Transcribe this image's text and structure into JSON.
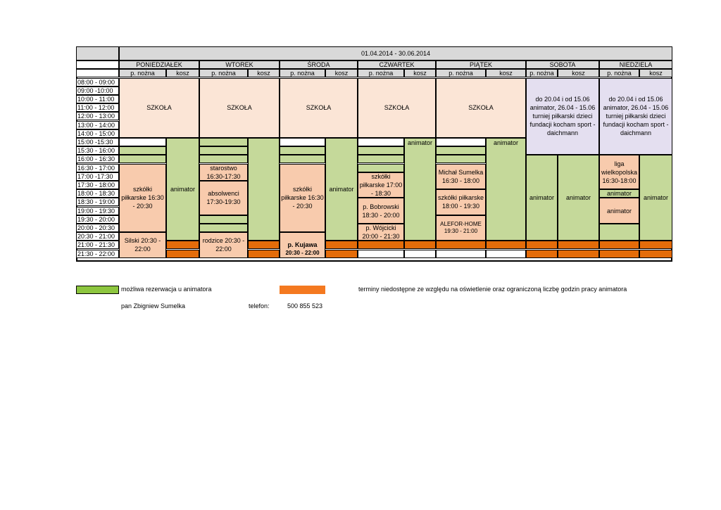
{
  "header": {
    "date_range": "01.04.2014 - 30.06.2014",
    "days": [
      "PONIEDZIAŁEK",
      "WTOREK",
      "ŚRODA",
      "CZWARTEK",
      "PIĄTEK",
      "SOBOTA",
      "NIEDZIELA"
    ],
    "sub_nozna": "p. nożna",
    "sub_kosz": "kosz"
  },
  "times": [
    "08:00 - 09:00",
    "09:00 -10:00",
    "10:00 - 11:00",
    "11:00 - 12:00",
    "12:00 - 13:00",
    "13:00 - 14:00",
    "14:00 - 15:00",
    "15:00 -15:30",
    "15:30 - 16:00",
    "16:00 - 16:30",
    "16:30 - 17:00",
    "17:00 -17:30",
    "17:30 - 18:00",
    "18:00 - 18:30",
    "18:30 - 19:00",
    "19:00 - 19:30",
    "19:30 - 20:00",
    "20:00 - 20:30",
    "20:30 - 21:00",
    "21:00 - 21:30",
    "21:30 - 22:00"
  ],
  "cells": {
    "school": "SZKOŁA",
    "weekend_note": "do 20.04 i od 15.06 animator, 26.04 - 15.06 turniej piłkarski dzieci fundacji kocham sport - daichmann",
    "animator": "animator",
    "mon_szkolki": "szkółki piłkarske 16:30 - 20:30",
    "mon_silski": "Silski 20:30 - 22:00",
    "tue_starostwo": "starostwo 16:30-17:30",
    "tue_absolwenci": "absolwenci 17:30-19:30",
    "tue_rodzice": "rodzice 20:30 - 22:00",
    "wed_szkolki": "szkółki piłkarske 16:30 - 20:30",
    "wed_kujawa": "p. Kujawa",
    "wed_kujawa_time": "20:30 - 22:00",
    "thu_szkolki": "szkółki piłkarske 17:00 - 18:30",
    "thu_bobrowski": "p. Bobrowski 18:30 - 20:00",
    "thu_wojcicki": "p. Wójcicki 20:00 - 21:30",
    "fri_sumelka": "Michał Sumelka 16:30 - 18:00",
    "fri_szkolki": "szkółki piłkarske 18:00 - 19:30",
    "fri_alefor": "ALEFOR-HOME",
    "fri_alefor_time": "19:30 - 21:00",
    "sun_liga": "liga wielkopolska 16:30-18:00"
  },
  "legend": {
    "green_label": "możliwa rezerwacja u animatora",
    "orange_label": "terminy niedostępne ze względu na oświetlenie oraz  ograniczoną liczbę godzin pracy animatora",
    "contact_name": "pan Zbigniew Sumelka",
    "phone_label": "telefon:",
    "phone_number": "500 855 523"
  },
  "colors": {
    "school": "#fbe5d6",
    "available": "#c5d99a",
    "booked": "#f8cbad",
    "unavailable": "#e46c0a",
    "weekend": "#e4dff0",
    "header": "#d9d9d9"
  }
}
